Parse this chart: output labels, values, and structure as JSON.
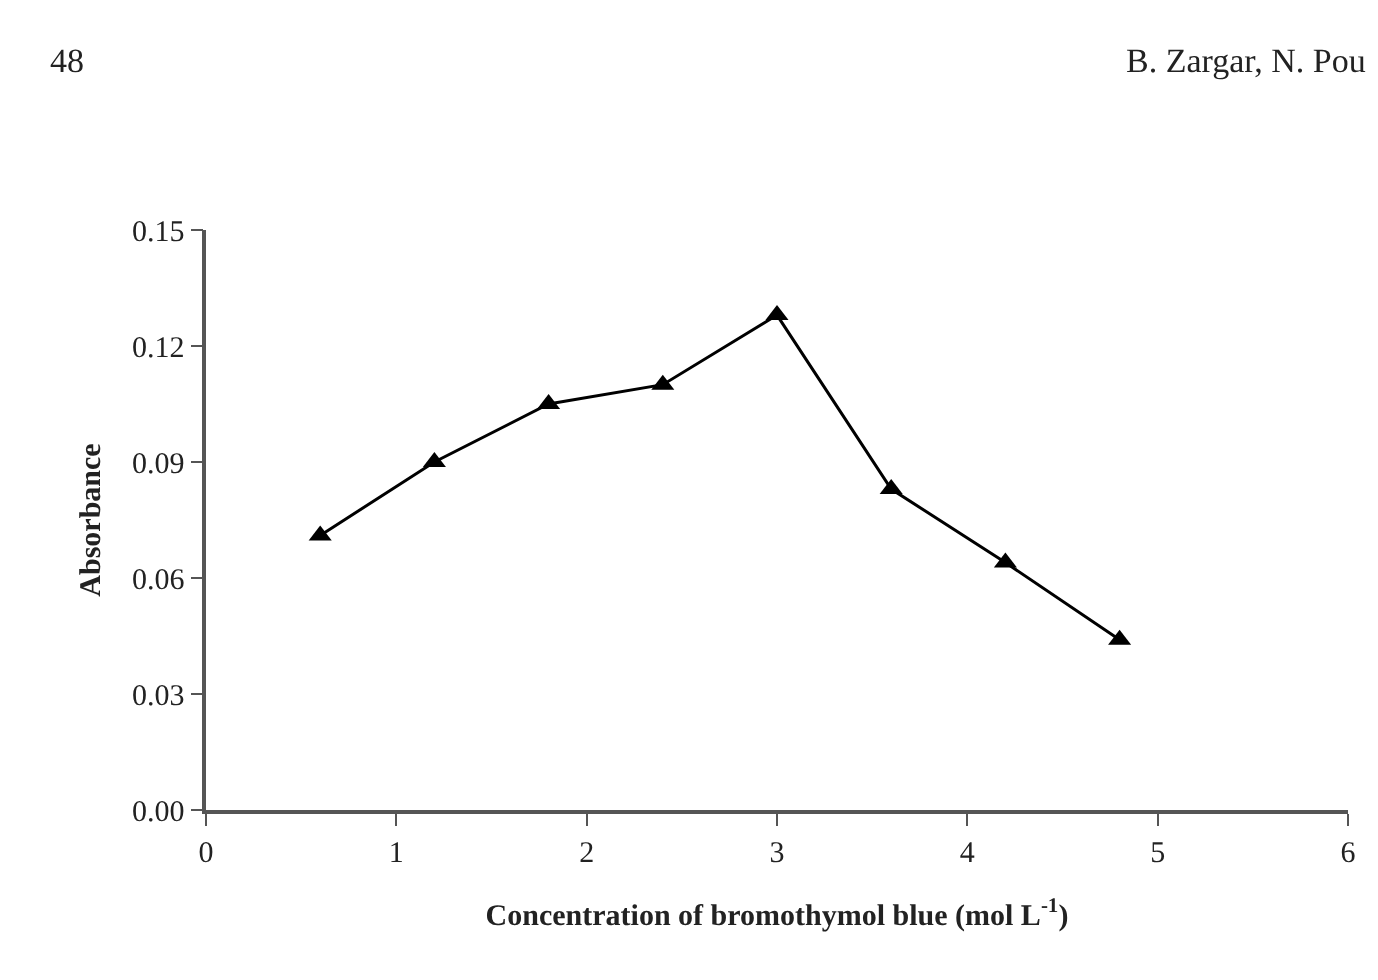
{
  "chart_data": {
    "type": "line",
    "xlabel": "Concentration of bromothymol blue (mol L$^{-1}$)",
    "ylabel": "Absorbance",
    "annotations": [
      "48",
      "B. Zargar, N. Pou"
    ],
    "x": [
      0.6,
      1.2,
      1.8,
      2.4,
      3.0,
      3.6,
      4.2,
      4.8
    ],
    "series": [
      {
        "color": "#000000",
        "values": [
          0.071,
          0.09,
          0.105,
          0.11,
          0.128,
          0.083,
          0.064,
          0.044
        ]
      }
    ],
    "xlim": [
      0,
      6
    ],
    "xticks": [
      0,
      1,
      2,
      3,
      4,
      5,
      6
    ],
    "ylim": [
      0,
      0.15
    ],
    "yticks": [
      {
        "value": 0,
        "label": "0.00"
      },
      {
        "value": 0.03,
        "label": "0.03"
      },
      {
        "value": 0.06,
        "label": "0.06"
      },
      {
        "value": 0.09,
        "label": "0.09"
      },
      {
        "value": 0.12,
        "label": "0.12"
      },
      {
        "value": 0.15,
        "label": "0.15"
      }
    ],
    "marker": "triangle",
    "line_style": "solid"
  }
}
